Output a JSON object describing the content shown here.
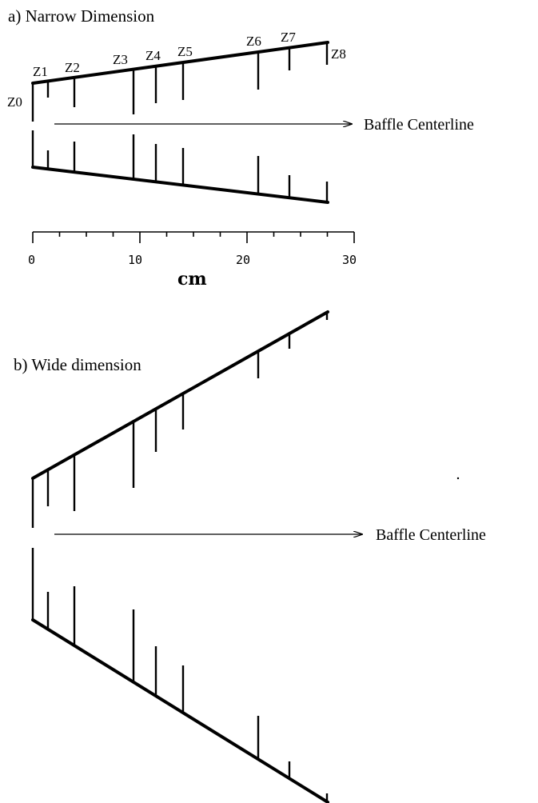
{
  "panel_a": {
    "title": "a)  Narrow Dimension",
    "centerline_label": "Baffle Centerline",
    "zones": [
      "Z0",
      "Z1",
      "Z2",
      "Z3",
      "Z4",
      "Z5",
      "Z6",
      "Z7",
      "Z8"
    ]
  },
  "scale": {
    "unit": "cm",
    "tick_labels": [
      "0",
      "10",
      "20",
      "30"
    ],
    "range": [
      0,
      30
    ]
  },
  "panel_b": {
    "title": "b) Wide dimension",
    "centerline_label": "Baffle Centerline"
  }
}
